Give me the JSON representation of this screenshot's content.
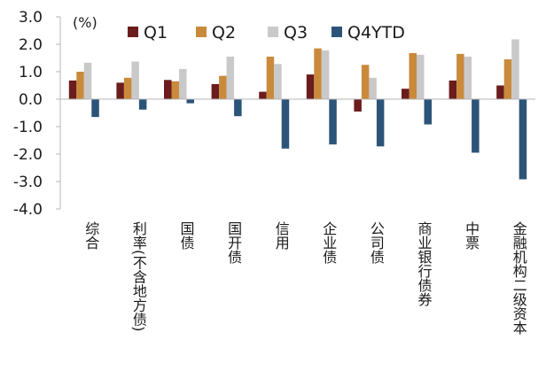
{
  "chart_data": {
    "type": "bar",
    "unit_label": "(%)",
    "categories": [
      "综合",
      "利率(不含地方债)",
      "国债",
      "国开债",
      "信用",
      "企业债",
      "公司债",
      "商业银行债券",
      "中票",
      "金融机构二级资本"
    ],
    "series": [
      {
        "name": "Q1",
        "color": "#6b1c1c",
        "values": [
          0.68,
          0.6,
          0.7,
          0.55,
          0.27,
          0.9,
          -0.45,
          0.38,
          0.68,
          0.5
        ]
      },
      {
        "name": "Q2",
        "color": "#c98a3c",
        "values": [
          1.0,
          0.78,
          0.65,
          0.85,
          1.55,
          1.85,
          1.25,
          1.68,
          1.65,
          1.45
        ]
      },
      {
        "name": "Q3",
        "color": "#c9c9c9",
        "values": [
          1.33,
          1.37,
          1.1,
          1.55,
          1.28,
          1.78,
          0.78,
          1.62,
          1.55,
          2.18
        ]
      },
      {
        "name": "Q4YTD",
        "color": "#2c5479",
        "values": [
          -0.65,
          -0.38,
          -0.15,
          -0.62,
          -1.8,
          -1.65,
          -1.72,
          -0.92,
          -1.95,
          -2.92
        ]
      }
    ],
    "ylim": [
      -4.0,
      3.0
    ],
    "yticks": [
      "3.0",
      "2.0",
      "1.0",
      "0.0",
      "-1.0",
      "-2.0",
      "-3.0",
      "-4.0"
    ],
    "legend_position": "top",
    "grid": false
  }
}
